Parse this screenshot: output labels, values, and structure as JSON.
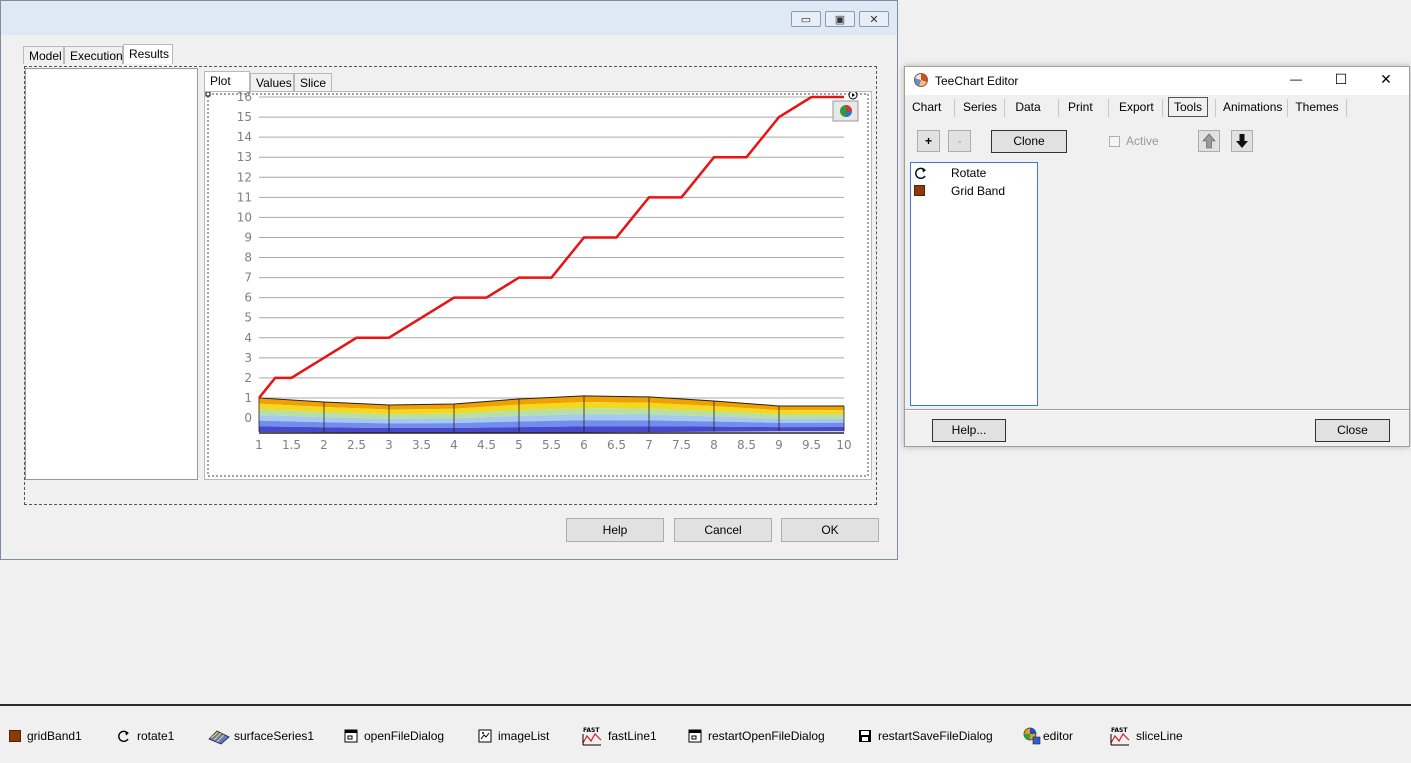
{
  "main_window": {
    "title_buttons": {
      "minimize": "▭",
      "restore": "▣",
      "close": "✕"
    },
    "tabs": [
      "Model",
      "Execution",
      "Results"
    ],
    "active_tab": "Results",
    "subtabs": [
      "Plot",
      "Values",
      "Slice"
    ],
    "active_subtab": "Plot",
    "buttons": {
      "help": "Help",
      "cancel": "Cancel",
      "ok": "OK"
    }
  },
  "chart_data": {
    "type": "line",
    "title": "",
    "xlabel": "",
    "ylabel": "",
    "xlim": [
      1,
      10
    ],
    "ylim": [
      0,
      16
    ],
    "x_ticks": [
      "1",
      "1.5",
      "2",
      "2.5",
      "3",
      "3.5",
      "4",
      "4.5",
      "5",
      "5.5",
      "6",
      "6.5",
      "7",
      "7.5",
      "8",
      "8.5",
      "9",
      "9.5",
      "10"
    ],
    "y_ticks": [
      "0",
      "1",
      "2",
      "3",
      "4",
      "5",
      "6",
      "7",
      "8",
      "9",
      "10",
      "11",
      "12",
      "13",
      "14",
      "15",
      "16"
    ],
    "grid": true,
    "series": [
      {
        "type": "line",
        "color": "#e81313",
        "x": [
          1,
          1.25,
          1.5,
          2,
          2.5,
          3,
          3.5,
          4,
          4.5,
          5,
          5.5,
          6,
          6.5,
          7,
          7.5,
          8,
          8.5,
          9,
          9.5,
          10
        ],
        "y": [
          1,
          2,
          2,
          3,
          4,
          4,
          5,
          6,
          6,
          7,
          7,
          9,
          9,
          11,
          11,
          13,
          13,
          15,
          16,
          16
        ]
      },
      {
        "type": "surface",
        "x": [
          1,
          2,
          3,
          4,
          5,
          6,
          7,
          8,
          9,
          10
        ],
        "top_y": [
          1.0,
          0.8,
          0.65,
          0.7,
          0.95,
          1.1,
          1.05,
          0.85,
          0.6,
          0.6
        ],
        "band_colors": [
          "#f0a000",
          "#f2d820",
          "#b8e0a0",
          "#a8c8f0",
          "#6f8ef0",
          "#4848c8"
        ]
      }
    ],
    "toolbar_icon": "pie-chart-icon"
  },
  "editor": {
    "title": "TeeChart Editor",
    "title_buttons": {
      "minimize": "—",
      "maximize": "☐",
      "close": "✕"
    },
    "tabs": [
      "Chart",
      "Series",
      "Data",
      "Print",
      "Export",
      "Tools",
      "Animations",
      "Themes"
    ],
    "active_tab": "Tools",
    "toolbar": {
      "add": "+",
      "remove": "-",
      "clone": "Clone",
      "active": "Active"
    },
    "tools": [
      {
        "label": "Rotate",
        "icon": "rotate-icon"
      },
      {
        "label": "Grid Band",
        "icon": "grid-band-icon",
        "color": "#8b3a0a"
      }
    ],
    "buttons": {
      "help": "Help...",
      "close": "Close"
    }
  },
  "tray": {
    "items": [
      {
        "label": "gridBand1",
        "icon": "grid-band-icon"
      },
      {
        "label": "rotate1",
        "icon": "rotate-icon"
      },
      {
        "label": "surfaceSeries1",
        "icon": "surface-series-icon"
      },
      {
        "label": "openFileDialog",
        "icon": "open-file-dialog-icon"
      },
      {
        "label": "imageList",
        "icon": "image-list-icon"
      },
      {
        "label": "fastLine1",
        "icon": "fast-line-icon",
        "badge": "FAST"
      },
      {
        "label": "restartOpenFileDialog",
        "icon": "open-file-dialog-icon"
      },
      {
        "label": "restartSaveFileDialog",
        "icon": "save-file-dialog-icon"
      },
      {
        "label": "editor",
        "icon": "editor-icon"
      },
      {
        "label": "sliceLine",
        "icon": "fast-line-icon",
        "badge": "FAST"
      }
    ]
  }
}
